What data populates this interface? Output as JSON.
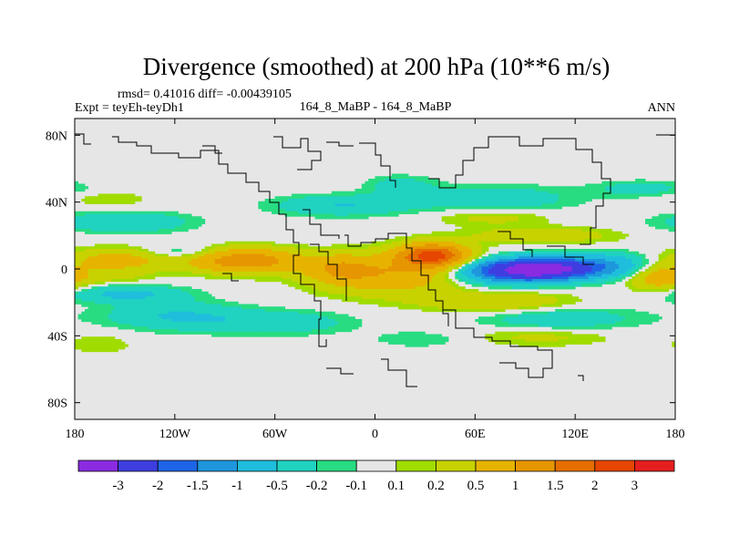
{
  "chart_data": {
    "type": "heatmap",
    "title": "Divergence (smoothed) at 200 hPa (10**6 m/s)",
    "stats_line": "rmsd= 0.41016 diff= -0.00439105",
    "left_label": "Expt = teyEh-teyDh1",
    "center_label": "164_8_MaBP - 164_8_MaBP",
    "right_label": "ANN",
    "xlim": [
      -180,
      180
    ],
    "ylim": [
      -90,
      90
    ],
    "x_ticks": [
      {
        "value": -180,
        "label": "180"
      },
      {
        "value": -120,
        "label": "120W"
      },
      {
        "value": -60,
        "label": "60W"
      },
      {
        "value": 0,
        "label": "0"
      },
      {
        "value": 60,
        "label": "60E"
      },
      {
        "value": 120,
        "label": "120E"
      },
      {
        "value": 180,
        "label": "180"
      }
    ],
    "y_ticks": [
      {
        "value": 80,
        "label": "80N"
      },
      {
        "value": 40,
        "label": "40N"
      },
      {
        "value": 0,
        "label": "0"
      },
      {
        "value": -40,
        "label": "40S"
      },
      {
        "value": -80,
        "label": "80S"
      }
    ],
    "colorbar": {
      "colors": [
        "#8a2be2",
        "#3e3ee0",
        "#1e64e6",
        "#1e96dc",
        "#1ebedc",
        "#20d2c0",
        "#28dc82",
        "#e6e6e6",
        "#a0dc00",
        "#c8d200",
        "#e6b400",
        "#e69600",
        "#e66e00",
        "#e64600",
        "#e61e1e"
      ],
      "levels": [
        "-3",
        "-2",
        "-1.5",
        "-1",
        "-0.5",
        "-0.2",
        "-0.1",
        "0.1",
        "0.2",
        "0.5",
        "1",
        "1.5",
        "2",
        "3"
      ]
    },
    "background_value": 0,
    "features": [
      {
        "lon": 100,
        "lat": 0,
        "rlon": 30,
        "rlat": 6,
        "value": -3.2
      },
      {
        "lon": 78,
        "lat": -2,
        "rlon": 32,
        "rlat": 7,
        "value": -1.3
      },
      {
        "lon": 138,
        "lat": 2,
        "rlon": 28,
        "rlat": 7,
        "value": -0.9
      },
      {
        "lon": 110,
        "lat": -30,
        "rlon": 48,
        "rlat": 8,
        "value": -0.4
      },
      {
        "lon": 70,
        "lat": 42,
        "rlon": 48,
        "rlat": 8,
        "value": -0.4
      },
      {
        "lon": -150,
        "lat": -15,
        "rlon": 35,
        "rlat": 5,
        "value": -0.6
      },
      {
        "lon": -120,
        "lat": -28,
        "rlon": 40,
        "rlat": 8,
        "value": -0.5
      },
      {
        "lon": -60,
        "lat": -32,
        "rlon": 45,
        "rlat": 7,
        "value": -0.4
      },
      {
        "lon": -150,
        "lat": 28,
        "rlon": 38,
        "rlat": 6,
        "value": -0.5
      },
      {
        "lon": -115,
        "lat": 10,
        "rlon": 22,
        "rlat": 4,
        "value": -0.35
      },
      {
        "lon": -20,
        "lat": 38,
        "rlon": 40,
        "rlat": 6,
        "value": -0.5
      },
      {
        "lon": 15,
        "lat": 50,
        "rlon": 20,
        "rlat": 6,
        "value": -0.3
      },
      {
        "lon": 160,
        "lat": 48,
        "rlon": 30,
        "rlat": 5,
        "value": -0.3
      },
      {
        "lon": 28,
        "lat": -42,
        "rlon": 30,
        "rlat": 5,
        "value": -0.2
      },
      {
        "lon": 10,
        "lat": -3,
        "rlon": 42,
        "rlat": 12,
        "value": 0.9
      },
      {
        "lon": 35,
        "lat": 8,
        "rlon": 20,
        "rlat": 7,
        "value": 2.1
      },
      {
        "lon": -22,
        "lat": 0,
        "rlon": 20,
        "rlat": 8,
        "value": 0.7
      },
      {
        "lon": -78,
        "lat": 5,
        "rlon": 32,
        "rlat": 7,
        "value": 1.4
      },
      {
        "lon": -155,
        "lat": 5,
        "rlon": 30,
        "rlat": 7,
        "value": 0.7
      },
      {
        "lon": 75,
        "lat": -20,
        "rlon": 45,
        "rlat": 6,
        "value": 0.5
      },
      {
        "lon": 100,
        "lat": 20,
        "rlon": 45,
        "rlat": 5,
        "value": 0.4
      },
      {
        "lon": 100,
        "lat": -40,
        "rlon": 45,
        "rlat": 6,
        "value": 0.3
      },
      {
        "lon": 70,
        "lat": 31,
        "rlon": 35,
        "rlat": 5,
        "value": 0.3
      },
      {
        "lon": -160,
        "lat": -5,
        "rlon": 25,
        "rlat": 4,
        "value": 0.2
      },
      {
        "lon": -160,
        "lat": 42,
        "rlon": 25,
        "rlat": 5,
        "value": 0.2
      },
      {
        "lon": 170,
        "lat": -5,
        "rlon": 18,
        "rlat": 8,
        "value": 0.8
      },
      {
        "lon": -165,
        "lat": -45,
        "rlon": 20,
        "rlat": 6,
        "value": 0.2
      }
    ]
  }
}
